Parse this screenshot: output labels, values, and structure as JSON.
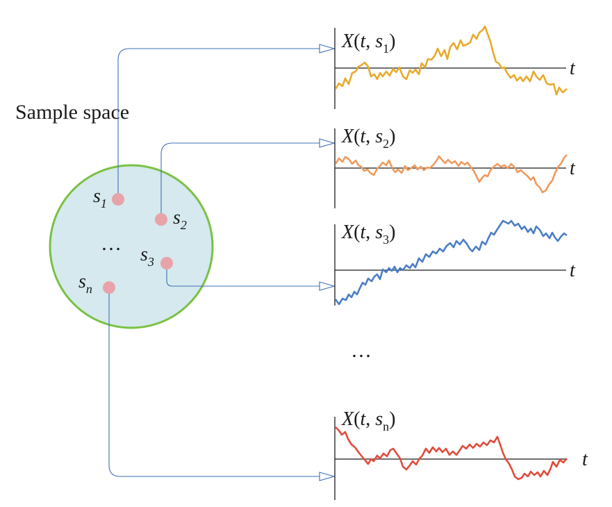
{
  "sample_space": {
    "title": "Sample space",
    "fill_color": "#d5e9ee",
    "border_color": "#7ac143",
    "point_color": "#e8a3a8",
    "ellipsis": "…",
    "points": [
      {
        "base": "s",
        "sub": "1"
      },
      {
        "base": "s",
        "sub": "2"
      },
      {
        "base": "s",
        "sub": "3"
      },
      {
        "base": "s",
        "sub": "n"
      }
    ]
  },
  "connector_color": "#3d6fb5",
  "plots_ellipsis": "…",
  "plots": [
    {
      "func": "X",
      "open": "(",
      "var": "t",
      "sep": ", ",
      "sbase": "s",
      "ssub": "1",
      "close": ")",
      "axis_label": "t",
      "color": "#e8aa2c"
    },
    {
      "func": "X",
      "open": "(",
      "var": "t",
      "sep": ", ",
      "sbase": "s",
      "ssub": "2",
      "close": ")",
      "axis_label": "t",
      "color": "#ef9a5c"
    },
    {
      "func": "X",
      "open": "(",
      "var": "t",
      "sep": ", ",
      "sbase": "s",
      "ssub": "3",
      "close": ")",
      "axis_label": "t",
      "color": "#4a7ec4"
    },
    {
      "func": "X",
      "open": "(",
      "var": "t",
      "sep": ", ",
      "sbase": "s",
      "ssub": "n",
      "close": ")",
      "axis_label": "t",
      "color": "#e04c3b"
    }
  ]
}
